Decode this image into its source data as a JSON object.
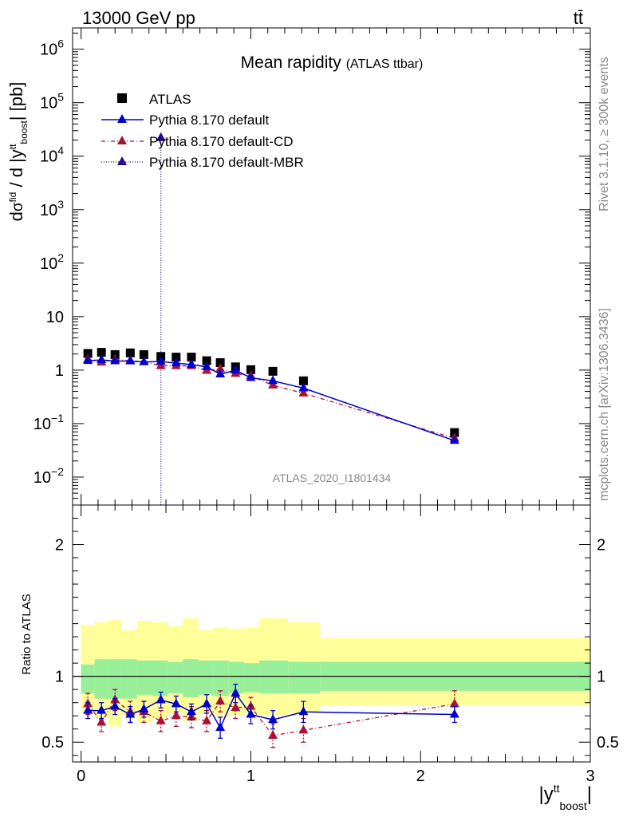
{
  "header": {
    "energy": "13000 GeV pp",
    "process": "tt̄"
  },
  "side_text": {
    "rivet": "Rivet 3.1.10, ≥ 300k events",
    "mcplots": "mcplots.cern.ch [arXiv:1306.3436]"
  },
  "analysis_id": "ATLAS_2020_I1801434",
  "chart_data": [
    {
      "panel": "main",
      "type": "scatter",
      "title": "Mean rapidity",
      "subtitle": "(ATLAS ttbar)",
      "ylabel": "dσfid / d |ytt boost| [pb]",
      "yscale": "log",
      "ylim": [
        0.003,
        2500000
      ],
      "xlim": [
        -0.05,
        3.0
      ],
      "yticks": [
        {
          "value": 1000000,
          "base": "10",
          "exp": "6"
        },
        {
          "value": 100000,
          "base": "10",
          "exp": "5"
        },
        {
          "value": 10000,
          "base": "10",
          "exp": "4"
        },
        {
          "value": 1000,
          "base": "10",
          "exp": "3"
        },
        {
          "value": 100,
          "base": "10",
          "exp": "2"
        },
        {
          "value": 10,
          "base": "10",
          "exp": ""
        },
        {
          "value": 1,
          "base": "1",
          "exp": ""
        },
        {
          "value": 0.1,
          "base": "10",
          "exp": "−1"
        },
        {
          "value": 0.01,
          "base": "10",
          "exp": "−2"
        }
      ],
      "legend_position": "top-left",
      "mbr_marker": {
        "x": 0.47,
        "y": 22000
      },
      "series": [
        {
          "name": "ATLAS",
          "style": "data",
          "x": [
            0.04,
            0.12,
            0.2,
            0.29,
            0.37,
            0.47,
            0.56,
            0.65,
            0.74,
            0.82,
            0.91,
            1.0,
            1.13,
            1.31,
            2.2
          ],
          "values": [
            2.05,
            2.15,
            1.95,
            2.1,
            1.95,
            1.8,
            1.75,
            1.75,
            1.5,
            1.38,
            1.15,
            1.02,
            0.95,
            0.63,
            0.068
          ]
        },
        {
          "name": "Pythia 8.170 default",
          "style": "solid-blue",
          "x": [
            0.04,
            0.12,
            0.2,
            0.29,
            0.37,
            0.47,
            0.56,
            0.65,
            0.74,
            0.82,
            0.91,
            1.0,
            1.13,
            1.31,
            2.2
          ],
          "values": [
            1.5,
            1.55,
            1.48,
            1.47,
            1.42,
            1.45,
            1.35,
            1.27,
            1.15,
            0.84,
            0.99,
            0.72,
            0.63,
            0.46,
            0.048
          ]
        },
        {
          "name": "Pythia 8.170 default-CD",
          "style": "dashdot-red",
          "x": [
            0.04,
            0.12,
            0.2,
            0.29,
            0.37,
            0.47,
            0.56,
            0.65,
            0.74,
            0.82,
            0.91,
            1.0,
            1.13,
            1.31,
            2.2
          ],
          "values": [
            1.6,
            1.4,
            1.58,
            1.5,
            1.42,
            1.2,
            1.2,
            1.2,
            0.98,
            1.05,
            0.86,
            0.78,
            0.52,
            0.37,
            0.053
          ]
        },
        {
          "name": "Pythia 8.170 default-MBR",
          "style": "dotted-navy",
          "x": [],
          "values": []
        }
      ]
    },
    {
      "panel": "ratio",
      "type": "scatter",
      "ylabel": "Ratio to ATLAS",
      "xlabel": "|ytt boost|",
      "ylim": [
        0.35,
        2.3
      ],
      "xlim": [
        -0.05,
        3.0
      ],
      "yticks": [
        0.5,
        1,
        2
      ],
      "ytick_labels": [
        "0.5",
        "1",
        "2"
      ],
      "xticks": [
        0,
        1,
        2,
        3
      ],
      "xtick_labels": [
        "0",
        "1",
        "2",
        "3"
      ],
      "bin_edges": [
        0.0,
        0.08,
        0.16,
        0.24,
        0.33,
        0.42,
        0.51,
        0.6,
        0.69,
        0.78,
        0.87,
        0.96,
        1.05,
        1.22,
        1.41,
        3.0
      ],
      "band_inner": [
        [
          0.87,
          1.09
        ],
        [
          0.83,
          1.13
        ],
        [
          0.83,
          1.13
        ],
        [
          0.83,
          1.13
        ],
        [
          0.86,
          1.12
        ],
        [
          0.85,
          1.12
        ],
        [
          0.87,
          1.11
        ],
        [
          0.84,
          1.13
        ],
        [
          0.86,
          1.12
        ],
        [
          0.85,
          1.12
        ],
        [
          0.87,
          1.11
        ],
        [
          0.88,
          1.1
        ],
        [
          0.87,
          1.12
        ],
        [
          0.87,
          1.11
        ],
        [
          0.89,
          1.11
        ]
      ],
      "band_outer": [
        [
          0.74,
          1.39
        ],
        [
          0.69,
          1.41
        ],
        [
          0.62,
          1.43
        ],
        [
          0.7,
          1.35
        ],
        [
          0.65,
          1.42
        ],
        [
          0.68,
          1.41
        ],
        [
          0.72,
          1.38
        ],
        [
          0.66,
          1.44
        ],
        [
          0.72,
          1.35
        ],
        [
          0.69,
          1.37
        ],
        [
          0.7,
          1.36
        ],
        [
          0.72,
          1.37
        ],
        [
          0.7,
          1.44
        ],
        [
          0.72,
          1.41
        ],
        [
          0.78,
          1.29
        ]
      ],
      "series": [
        {
          "name": "Pythia 8.170 default",
          "style": "solid-blue",
          "x": [
            0.04,
            0.12,
            0.2,
            0.29,
            0.37,
            0.47,
            0.56,
            0.65,
            0.74,
            0.82,
            0.91,
            1.0,
            1.13,
            1.31,
            2.2
          ],
          "values": [
            0.74,
            0.74,
            0.77,
            0.71,
            0.75,
            0.82,
            0.79,
            0.73,
            0.79,
            0.61,
            0.87,
            0.71,
            0.67,
            0.73,
            0.71
          ],
          "err": [
            0.06,
            0.06,
            0.06,
            0.06,
            0.06,
            0.06,
            0.06,
            0.06,
            0.07,
            0.08,
            0.07,
            0.07,
            0.07,
            0.08,
            0.06
          ]
        },
        {
          "name": "Pythia 8.170 default-CD",
          "style": "dashdot-red",
          "x": [
            0.04,
            0.12,
            0.2,
            0.29,
            0.37,
            0.47,
            0.56,
            0.65,
            0.74,
            0.82,
            0.91,
            1.0,
            1.13,
            1.31,
            2.2
          ],
          "values": [
            0.79,
            0.65,
            0.82,
            0.73,
            0.73,
            0.66,
            0.7,
            0.69,
            0.66,
            0.81,
            0.76,
            0.77,
            0.55,
            0.59,
            0.79
          ],
          "err": [
            0.08,
            0.07,
            0.08,
            0.08,
            0.08,
            0.08,
            0.08,
            0.08,
            0.08,
            0.08,
            0.08,
            0.07,
            0.09,
            0.09,
            0.1
          ]
        }
      ]
    }
  ]
}
